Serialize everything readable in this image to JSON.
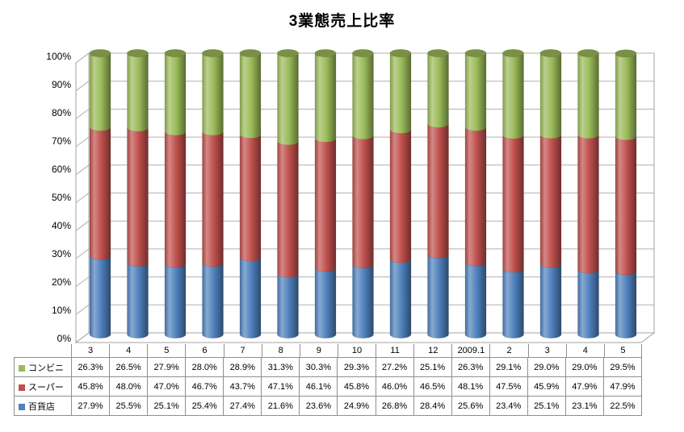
{
  "title": "3業態売上比率",
  "chart_data": {
    "type": "bar",
    "subtype": "100%-stacked-cylinder-3d",
    "title": "3業態売上比率",
    "categories": [
      "3",
      "4",
      "5",
      "6",
      "7",
      "8",
      "9",
      "10",
      "11",
      "12",
      "2009.1",
      "2",
      "3",
      "4",
      "5"
    ],
    "series": [
      {
        "name": "コンビニ",
        "color": "#9BBB59",
        "values": [
          26.3,
          26.5,
          27.9,
          28.0,
          28.9,
          31.3,
          30.3,
          29.3,
          27.2,
          25.1,
          26.3,
          29.1,
          29.0,
          29.0,
          29.5
        ]
      },
      {
        "name": "スーパー",
        "color": "#C0504D",
        "values": [
          45.8,
          48.0,
          47.0,
          46.7,
          43.7,
          47.1,
          46.1,
          45.8,
          46.0,
          46.5,
          48.1,
          47.5,
          45.9,
          47.9,
          47.9
        ]
      },
      {
        "name": "百貨店",
        "color": "#4F81BD",
        "values": [
          27.9,
          25.5,
          25.1,
          25.4,
          27.4,
          21.6,
          23.6,
          24.9,
          26.8,
          28.4,
          25.6,
          23.4,
          25.1,
          23.1,
          22.5
        ]
      }
    ],
    "stack_order_bottom_to_top": [
      "百貨店",
      "スーパー",
      "コンビニ"
    ],
    "value_format": "0.0%",
    "y_axis": {
      "min": 0,
      "max": 100,
      "unit": "%",
      "ticks": [
        "0%",
        "10%",
        "20%",
        "30%",
        "40%",
        "50%",
        "60%",
        "70%",
        "80%",
        "90%",
        "100%"
      ]
    },
    "grid": true,
    "legend_position": "table-left-column",
    "data_table_attached": true
  },
  "colors": {
    "wall_border": "#a3a3a3",
    "gridline": "#b0b0b0",
    "table_border": "#8f8f8f",
    "text": "#000000",
    "background": "#ffffff"
  }
}
